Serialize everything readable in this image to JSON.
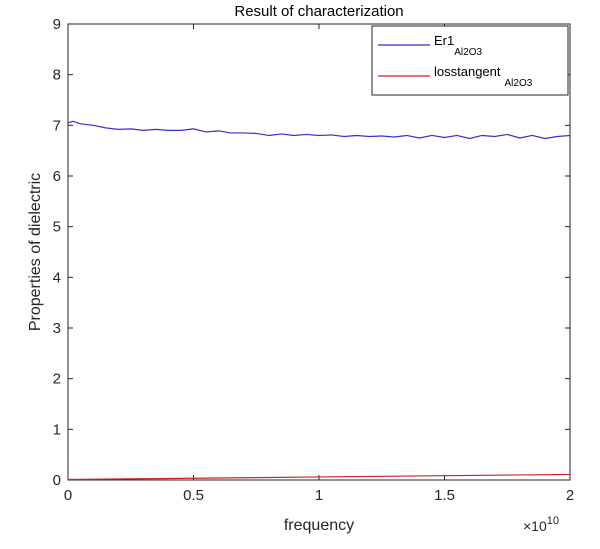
{
  "chart_data": {
    "type": "line",
    "title": "Result of characterization",
    "xlabel": "frequency",
    "ylabel": "Properties of dielectric",
    "x_exponent_label": "×10",
    "x_exponent_power": "10",
    "xlim": [
      0,
      2
    ],
    "ylim": [
      0,
      9
    ],
    "x_ticks": [
      0,
      0.5,
      1,
      1.5,
      2
    ],
    "x_tick_labels": [
      "0",
      "0.5",
      "1",
      "1.5",
      "2"
    ],
    "y_ticks": [
      0,
      1,
      2,
      3,
      4,
      5,
      6,
      7,
      8,
      9
    ],
    "y_tick_labels": [
      "0",
      "1",
      "2",
      "3",
      "4",
      "5",
      "6",
      "7",
      "8",
      "9"
    ],
    "grid": false,
    "legend_position": "top-right",
    "series": [
      {
        "name": "Er1",
        "name_subscript": "Al2O3",
        "color": "#3333cc",
        "x": [
          0,
          0.02,
          0.05,
          0.1,
          0.15,
          0.2,
          0.25,
          0.3,
          0.35,
          0.4,
          0.45,
          0.5,
          0.55,
          0.6,
          0.65,
          0.7,
          0.75,
          0.8,
          0.85,
          0.9,
          0.95,
          1.0,
          1.05,
          1.1,
          1.15,
          1.2,
          1.25,
          1.3,
          1.35,
          1.4,
          1.45,
          1.5,
          1.55,
          1.6,
          1.65,
          1.7,
          1.75,
          1.8,
          1.85,
          1.9,
          1.95,
          2.0
        ],
        "y": [
          7.05,
          7.08,
          7.03,
          7.0,
          6.95,
          6.92,
          6.93,
          6.9,
          6.92,
          6.9,
          6.9,
          6.93,
          6.87,
          6.89,
          6.85,
          6.85,
          6.84,
          6.8,
          6.83,
          6.8,
          6.82,
          6.8,
          6.81,
          6.78,
          6.8,
          6.78,
          6.79,
          6.77,
          6.8,
          6.75,
          6.8,
          6.76,
          6.8,
          6.74,
          6.8,
          6.78,
          6.82,
          6.75,
          6.8,
          6.74,
          6.78,
          6.8
        ]
      },
      {
        "name": "losstangent",
        "name_subscript": "Al2O3",
        "color": "#cc2222",
        "x": [
          0,
          0.1,
          0.2,
          0.3,
          0.4,
          0.5,
          0.6,
          0.7,
          0.8,
          0.9,
          1.0,
          1.1,
          1.2,
          1.3,
          1.4,
          1.5,
          1.6,
          1.7,
          1.8,
          1.9,
          2.0
        ],
        "y": [
          0.01,
          0.015,
          0.02,
          0.025,
          0.03,
          0.035,
          0.04,
          0.045,
          0.05,
          0.055,
          0.06,
          0.065,
          0.07,
          0.075,
          0.08,
          0.085,
          0.09,
          0.095,
          0.1,
          0.105,
          0.11
        ]
      }
    ]
  }
}
